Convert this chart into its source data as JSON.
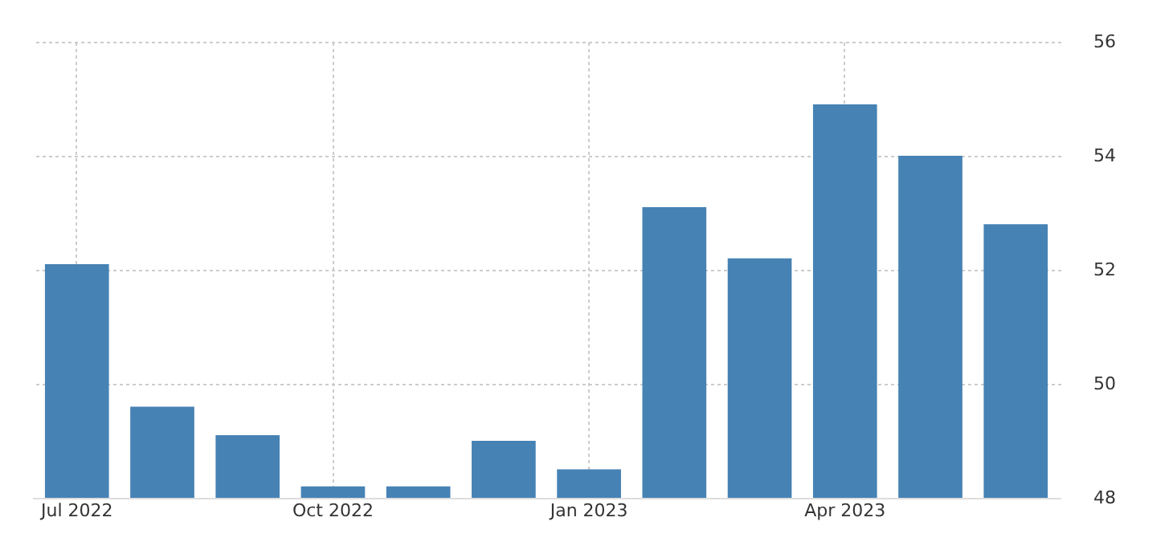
{
  "chart_data": {
    "type": "bar",
    "categories": [
      "Jul 2022",
      null,
      null,
      "Oct 2022",
      null,
      null,
      "Jan 2023",
      null,
      null,
      "Apr 2023",
      null,
      null
    ],
    "values": [
      52.1,
      49.6,
      49.1,
      48.2,
      48.2,
      49.0,
      48.5,
      53.1,
      52.2,
      54.9,
      54.0,
      52.8
    ],
    "color": "#4682b4",
    "ylim": [
      48,
      56
    ],
    "yticks": [
      48,
      50,
      52,
      54,
      56
    ],
    "grid": true
  }
}
